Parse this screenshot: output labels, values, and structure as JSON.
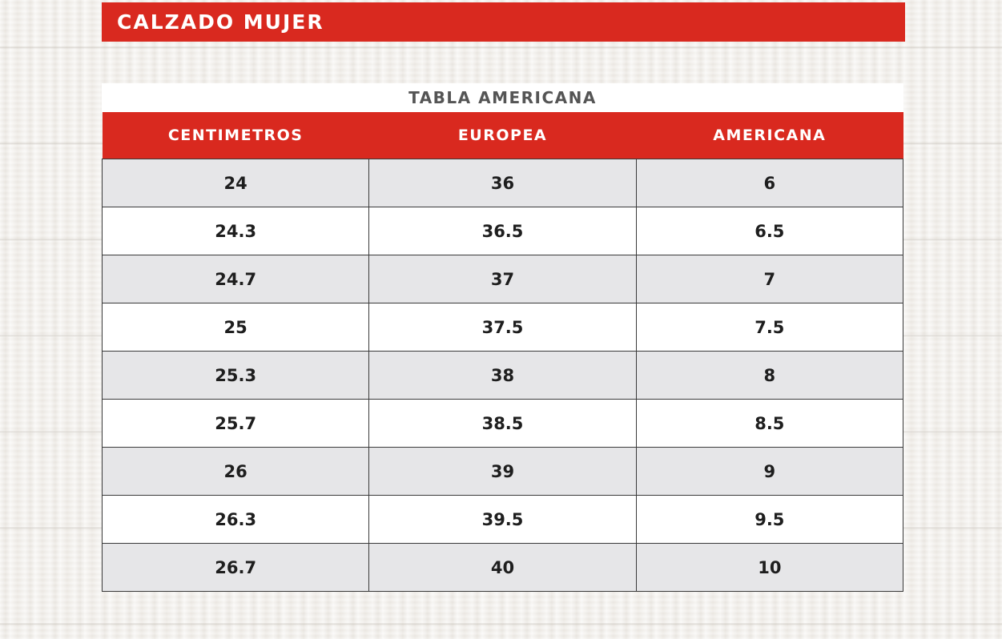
{
  "header": {
    "title": "CALZADO MUJER"
  },
  "table": {
    "subtitle": "TABLA AMERICANA",
    "columns": [
      "CENTIMETROS",
      "EUROPEA",
      "AMERICANA"
    ],
    "rows": [
      [
        "24",
        "36",
        "6"
      ],
      [
        "24.3",
        "36.5",
        "6.5"
      ],
      [
        "24.7",
        "37",
        "7"
      ],
      [
        "25",
        "37.5",
        "7.5"
      ],
      [
        "25.3",
        "38",
        "8"
      ],
      [
        "25.7",
        "38.5",
        "8.5"
      ],
      [
        "26",
        "39",
        "9"
      ],
      [
        "26.3",
        "39.5",
        "9.5"
      ],
      [
        "26.7",
        "40",
        "10"
      ]
    ]
  },
  "colors": {
    "accent": "#d9291f",
    "row_shaded": "#e6e6e8",
    "row_plain": "#ffffff"
  }
}
